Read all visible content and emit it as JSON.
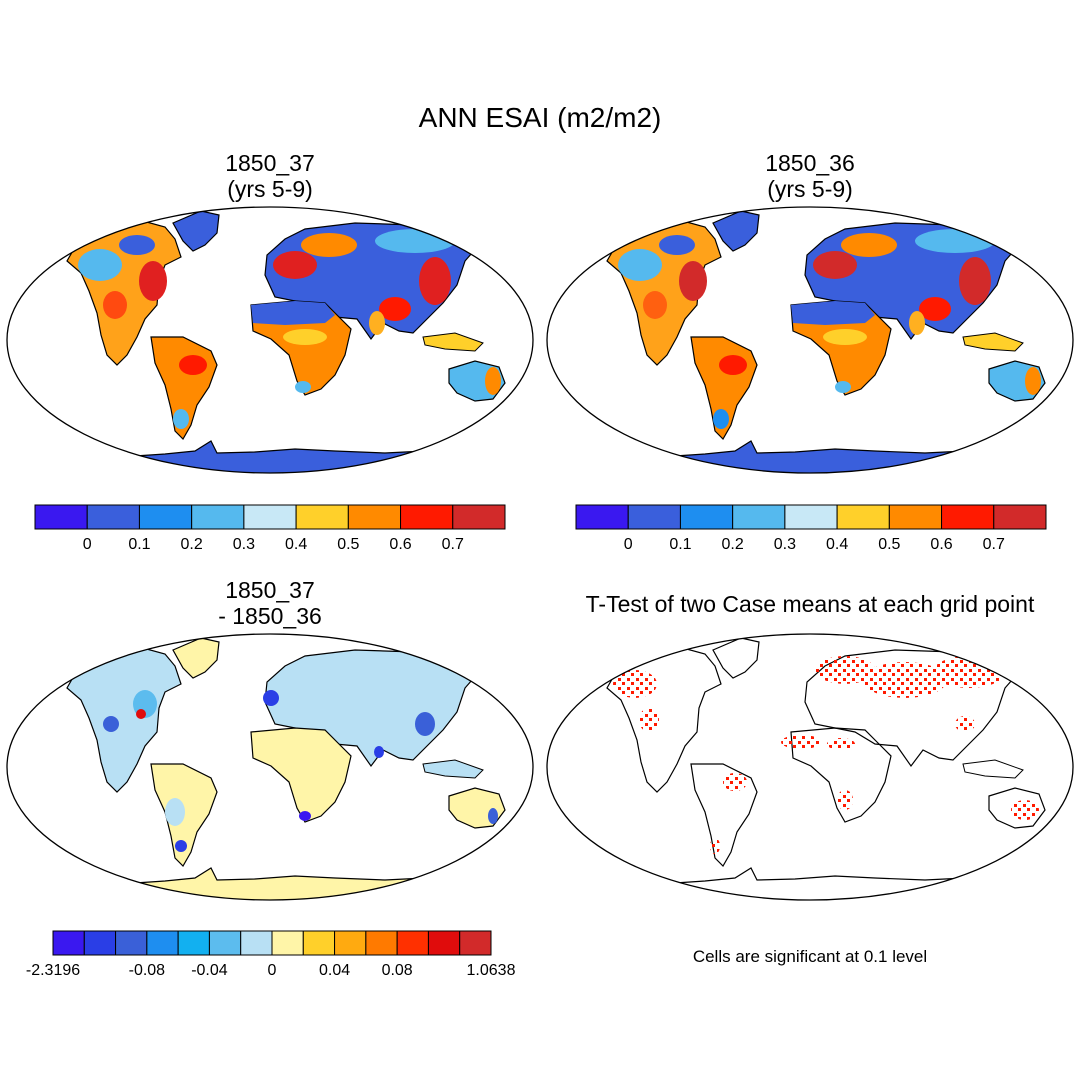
{
  "title": "ANN ESAI (m2/m2)",
  "panels": [
    {
      "title": "1850_37\n(yrs 5-9)",
      "colorbar": {
        "labels": [
          "0",
          "0.1",
          "0.2",
          "0.3",
          "0.4",
          "0.5",
          "0.6",
          "0.7"
        ],
        "colors": [
          "#3a18f0",
          "#3a5fdc",
          "#1e8ef0",
          "#55b9ee",
          "#c8e8f6",
          "#ffd02a",
          "#ff8a00",
          "#ff1a00",
          "#d22a2a"
        ]
      }
    },
    {
      "title": "1850_36\n(yrs 5-9)",
      "colorbar": {
        "labels": [
          "0",
          "0.1",
          "0.2",
          "0.3",
          "0.4",
          "0.5",
          "0.6",
          "0.7"
        ],
        "colors": [
          "#3a18f0",
          "#3a5fdc",
          "#1e8ef0",
          "#55b9ee",
          "#c8e8f6",
          "#ffd02a",
          "#ff8a00",
          "#ff1a00",
          "#d22a2a"
        ]
      }
    },
    {
      "title": "1850_37\n- 1850_36",
      "colorbar": {
        "labels": [
          "-2.3196",
          "-0.08",
          "-0.04",
          "0",
          "0.04",
          "0.08",
          "1.0638"
        ],
        "colors": [
          "#3a18f0",
          "#2a3ee6",
          "#3a60d8",
          "#1e8ef0",
          "#12b0f0",
          "#5cbcee",
          "#b8e0f4",
          "#fff5a8",
          "#ffd02a",
          "#ffaa10",
          "#ff7a00",
          "#ff3000",
          "#e00c0c",
          "#d22a2a"
        ]
      }
    },
    {
      "title": "T-Test of two Case means at each grid point",
      "note": "Cells are significant at 0.1 level"
    }
  ]
}
